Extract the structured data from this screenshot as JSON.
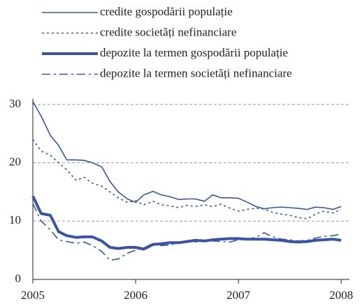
{
  "chart_data": {
    "type": "line",
    "x": [
      2005,
      2005.08,
      2005.17,
      2005.25,
      2005.33,
      2005.42,
      2005.5,
      2005.58,
      2005.67,
      2005.75,
      2005.83,
      2005.92,
      2006,
      2006.08,
      2006.17,
      2006.25,
      2006.33,
      2006.42,
      2006.5,
      2006.58,
      2006.67,
      2006.75,
      2006.83,
      2006.92,
      2007,
      2007.08,
      2007.17,
      2007.25,
      2007.33,
      2007.42,
      2007.5,
      2007.58,
      2007.67,
      2007.75,
      2007.83,
      2007.92,
      2008
    ],
    "series": [
      {
        "name": "credite gospodării populație",
        "color": "#3a53a4",
        "style": "solid",
        "values": [
          30.5,
          28,
          24.7,
          23,
          20.5,
          20.5,
          20.4,
          20,
          19.3,
          16.8,
          15,
          13.8,
          13.2,
          14.5,
          15.1,
          14.5,
          14.2,
          13.7,
          13.8,
          13.8,
          13.4,
          14.5,
          14,
          14,
          13.9,
          13.3,
          12.5,
          12.1,
          12.3,
          12.4,
          12.3,
          12.2,
          12,
          12.4,
          12.3,
          12,
          12.5
        ]
      },
      {
        "name": "credite societăți nefinanciare",
        "color": "#3a53a4",
        "style": "dotted",
        "values": [
          24,
          22,
          21.3,
          20,
          18.8,
          17,
          17.5,
          16.5,
          16,
          15,
          14,
          13.2,
          13.5,
          12.8,
          13.4,
          12.8,
          12.6,
          12.3,
          12.7,
          12.5,
          12.8,
          12.5,
          12.9,
          12.2,
          11.7,
          12,
          12.2,
          12.1,
          11.5,
          11.2,
          11,
          10.6,
          10.4,
          11.2,
          11.7,
          11.4,
          12
        ]
      },
      {
        "name": "depozite la termen gospodării populație",
        "color": "#3a53a4",
        "style": "thick",
        "values": [
          14.3,
          11.3,
          11,
          8.2,
          7.5,
          7.2,
          7.3,
          7.3,
          6.6,
          5.5,
          5.3,
          5.5,
          5.5,
          5.2,
          6,
          6.1,
          6.3,
          6.3,
          6.5,
          6.7,
          6.6,
          6.8,
          6.9,
          7,
          7,
          6.9,
          6.9,
          6.9,
          6.8,
          6.7,
          6.5,
          6.4,
          6.5,
          6.7,
          6.8,
          6.9,
          6.7
        ]
      },
      {
        "name": "depozite la termen societăți nefinanciare",
        "color": "#3a53a4",
        "style": "dashdot",
        "values": [
          13,
          10,
          8.5,
          6.8,
          6.5,
          6.2,
          6.4,
          5.8,
          4.8,
          3.3,
          3.5,
          4.5,
          5,
          5.4,
          6.2,
          5.8,
          5.9,
          6.3,
          6.6,
          6.4,
          6.8,
          6.6,
          6.5,
          6.4,
          6.8,
          6.9,
          7.2,
          8,
          7.3,
          6.9,
          6.8,
          6.6,
          6.7,
          7.1,
          7.4,
          7.5,
          7.8
        ]
      }
    ],
    "xlim": [
      2005,
      2008.08
    ],
    "xticks": [
      2005,
      2006,
      2007,
      2008
    ],
    "ylim": [
      0,
      31
    ],
    "yticks": [
      0,
      10,
      20,
      30
    ],
    "grid": true,
    "legend": "top"
  }
}
